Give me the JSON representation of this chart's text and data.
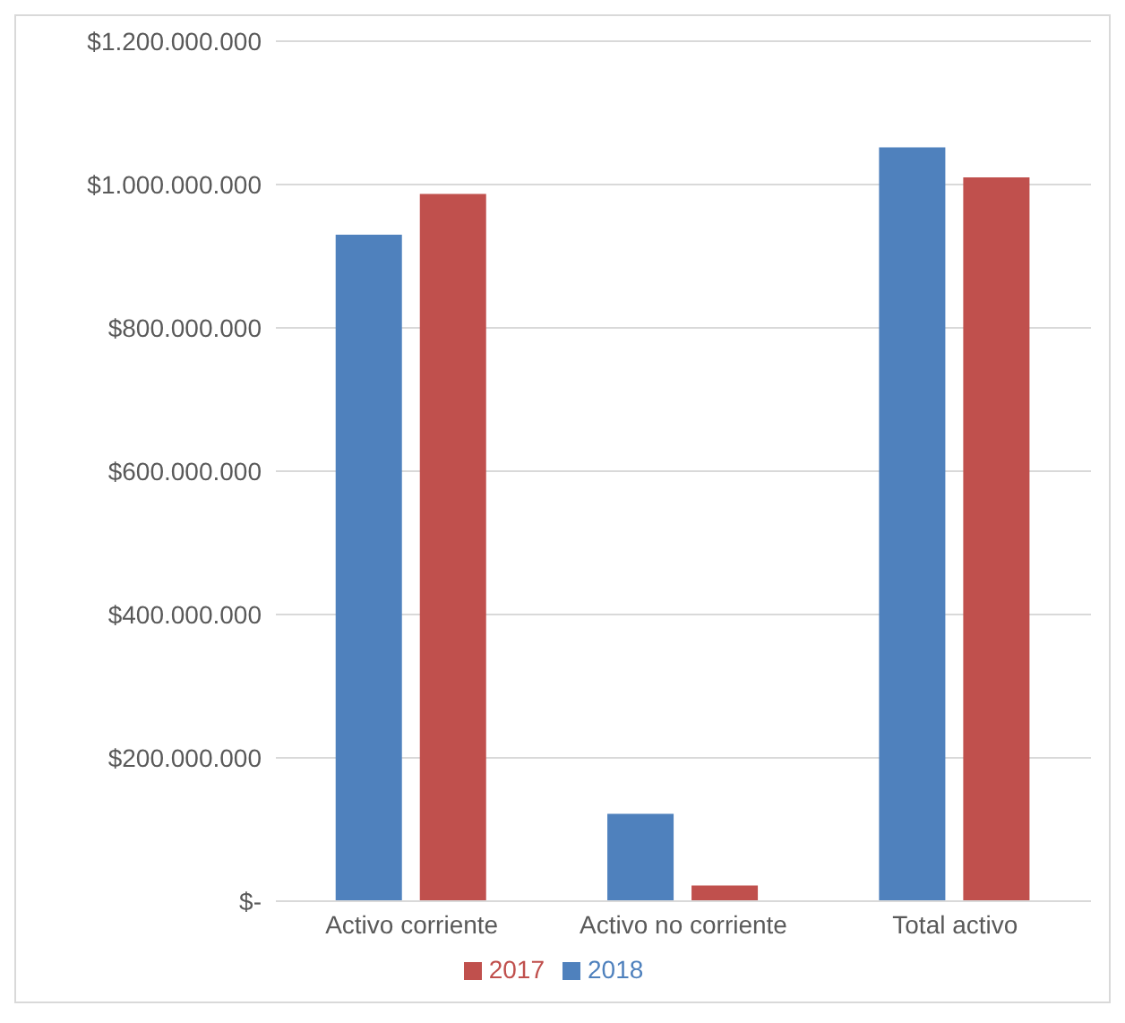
{
  "chart_data": {
    "type": "bar",
    "categories": [
      "Activo corriente",
      "Activo no corriente",
      "Total activo"
    ],
    "series": [
      {
        "name": "2018",
        "color": "#4f81bd",
        "values": [
          930000000,
          122000000,
          1052000000
        ]
      },
      {
        "name": "2017",
        "color": "#c0504d",
        "values": [
          987000000,
          22000000,
          1010000000
        ]
      }
    ],
    "ylim": [
      0,
      1200000000
    ],
    "yticks": [
      {
        "value": 0,
        "label": "$-"
      },
      {
        "value": 200000000,
        "label": "$200.000.000"
      },
      {
        "value": 400000000,
        "label": "$400.000.000"
      },
      {
        "value": 600000000,
        "label": "$600.000.000"
      },
      {
        "value": 800000000,
        "label": "$800.000.000"
      },
      {
        "value": 1000000000,
        "label": "$1.000.000.000"
      },
      {
        "value": 1200000000,
        "label": "$1.200.000.000"
      }
    ],
    "grid": "y",
    "legend": "bottom"
  }
}
